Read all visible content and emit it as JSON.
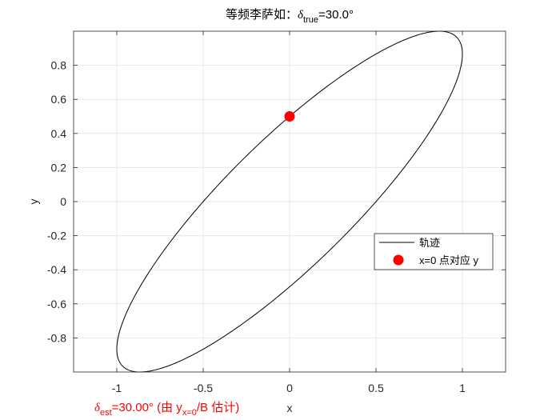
{
  "chart_data": {
    "type": "line",
    "title": {
      "prefix": "等频李萨如：",
      "delta_symbol": "δ",
      "subscript": "true",
      "suffix": "=30.0°"
    },
    "xlabel": "x",
    "ylabel": "y",
    "xlim": [
      -1.25,
      1.25
    ],
    "ylim": [
      -1.0,
      1.0
    ],
    "xticks": [
      -1,
      -0.5,
      0,
      0.5,
      1
    ],
    "xtick_labels": [
      "-1",
      "-0.5",
      "0",
      "0.5",
      "1"
    ],
    "yticks": [
      -0.8,
      -0.6,
      -0.4,
      -0.2,
      0,
      0.2,
      0.4,
      0.6,
      0.8
    ],
    "ytick_labels": [
      "-0.8",
      "-0.6",
      "-0.4",
      "-0.2",
      "0",
      "0.2",
      "0.4",
      "0.6",
      "0.8"
    ],
    "grid": true,
    "legend_location": "east",
    "series": [
      {
        "name": "轨迹",
        "kind": "parametric",
        "x_equation": "x = sin(t)",
        "y_equation": "y = sin(t + δ)",
        "delta_deg": 30.0,
        "color": "#000000"
      },
      {
        "name": "x=0 点对应 y",
        "kind": "marker",
        "x": 0,
        "y": 0.5,
        "color": "#ff0000"
      }
    ],
    "annotation": {
      "delta_symbol": "δ",
      "delta_sub": "est",
      "value": "=30.00° (由 y",
      "y_sub": "x=0",
      "tail": "/B 估计)",
      "color": "#ff0000"
    }
  }
}
